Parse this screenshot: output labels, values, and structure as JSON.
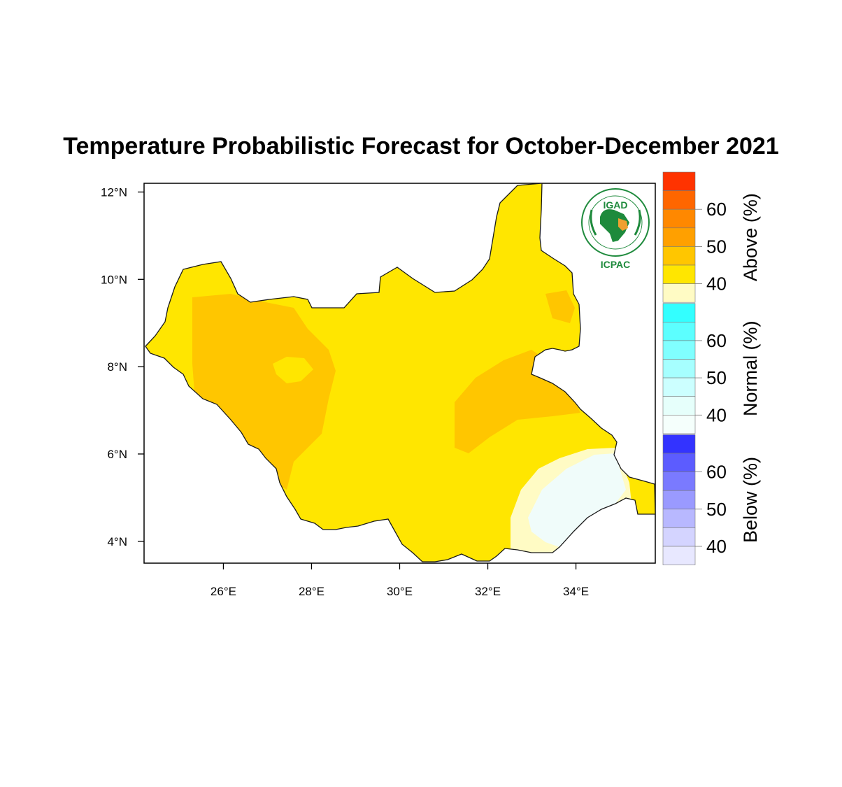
{
  "title": "Temperature Probabilistic Forecast for October-December 2021",
  "logo": {
    "top_text": "IGAD",
    "bottom_text": "ICPAC",
    "icon": "igad-icpac-logo-icon"
  },
  "chart_data": {
    "type": "heatmap",
    "title": "Temperature Probabilistic Forecast for October-December 2021",
    "x_ticks": [
      "26°E",
      "28°E",
      "30°E",
      "32°E",
      "34°E"
    ],
    "y_ticks": [
      "4°N",
      "6°N",
      "8°N",
      "10°N",
      "12°N"
    ],
    "xlim": [
      24.2,
      35.8
    ],
    "ylim": [
      3.5,
      12.2
    ],
    "colorbar": {
      "groups": [
        {
          "name": "Above (%)",
          "ticks": [
            "60",
            "50",
            "40"
          ],
          "colors": [
            "#ff3300",
            "#ff6600",
            "#ff8800",
            "#ffa000",
            "#ffc600",
            "#ffe600",
            "#fffbc4"
          ]
        },
        {
          "name": "Normal (%)",
          "ticks": [
            "60",
            "50",
            "40"
          ],
          "colors": [
            "#33ffff",
            "#5cffff",
            "#80ffff",
            "#a6ffff",
            "#ccffff",
            "#e6fffb",
            "#f5fffc"
          ]
        },
        {
          "name": "Below (%)",
          "ticks": [
            "60",
            "50",
            "40"
          ],
          "colors": [
            "#3333ff",
            "#5c5cff",
            "#7a7aff",
            "#9a9aff",
            "#b8b8ff",
            "#d4d4ff",
            "#e8e8ff"
          ]
        }
      ]
    },
    "regions": [
      {
        "category": "Above",
        "level": "40-45",
        "color": "#ffe600"
      },
      {
        "category": "Above",
        "level": "45-50",
        "color": "#ffc600"
      },
      {
        "category": "Above",
        "level": "35-40",
        "color": "#fffbc4"
      },
      {
        "category": "Normal",
        "level": "35-40",
        "color": "#f0fcfa"
      }
    ]
  }
}
